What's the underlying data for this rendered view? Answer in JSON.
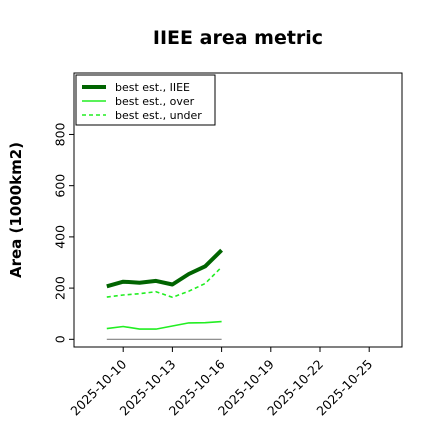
{
  "chart_data": {
    "type": "line",
    "title": "IIEE area metric",
    "xlabel": "",
    "ylabel": "Area (1000km2)",
    "xlim": [
      "2025-10-07",
      "2025-10-27"
    ],
    "ylim": [
      -30,
      1040
    ],
    "x_ticks": [
      "2025-10-10",
      "2025-10-13",
      "2025-10-16",
      "2025-10-19",
      "2025-10-22",
      "2025-10-25"
    ],
    "y_ticks": [
      0,
      200,
      400,
      600,
      800
    ],
    "grid": false,
    "legend_position": "top-left",
    "x": [
      "2025-10-09",
      "2025-10-10",
      "2025-10-11",
      "2025-10-12",
      "2025-10-13",
      "2025-10-14",
      "2025-10-15",
      "2025-10-16"
    ],
    "series": [
      {
        "name": "best est., IIEE",
        "color": "#006400",
        "style": "solid",
        "width": 4,
        "values": [
          207,
          225,
          221,
          228,
          214,
          255,
          285,
          348
        ]
      },
      {
        "name": "best est., over",
        "color": "#22ee22",
        "style": "solid",
        "width": 1.6,
        "values": [
          42,
          50,
          40,
          40,
          52,
          64,
          65,
          69
        ]
      },
      {
        "name": "best est., under",
        "color": "#22ee22",
        "style": "dashed",
        "width": 1.6,
        "values": [
          165,
          173,
          178,
          186,
          164,
          188,
          218,
          282
        ]
      },
      {
        "color": "#808080",
        "style": "solid",
        "width": 1.2,
        "values": [
          0,
          0,
          0,
          0,
          0,
          0,
          0,
          0
        ]
      }
    ]
  }
}
